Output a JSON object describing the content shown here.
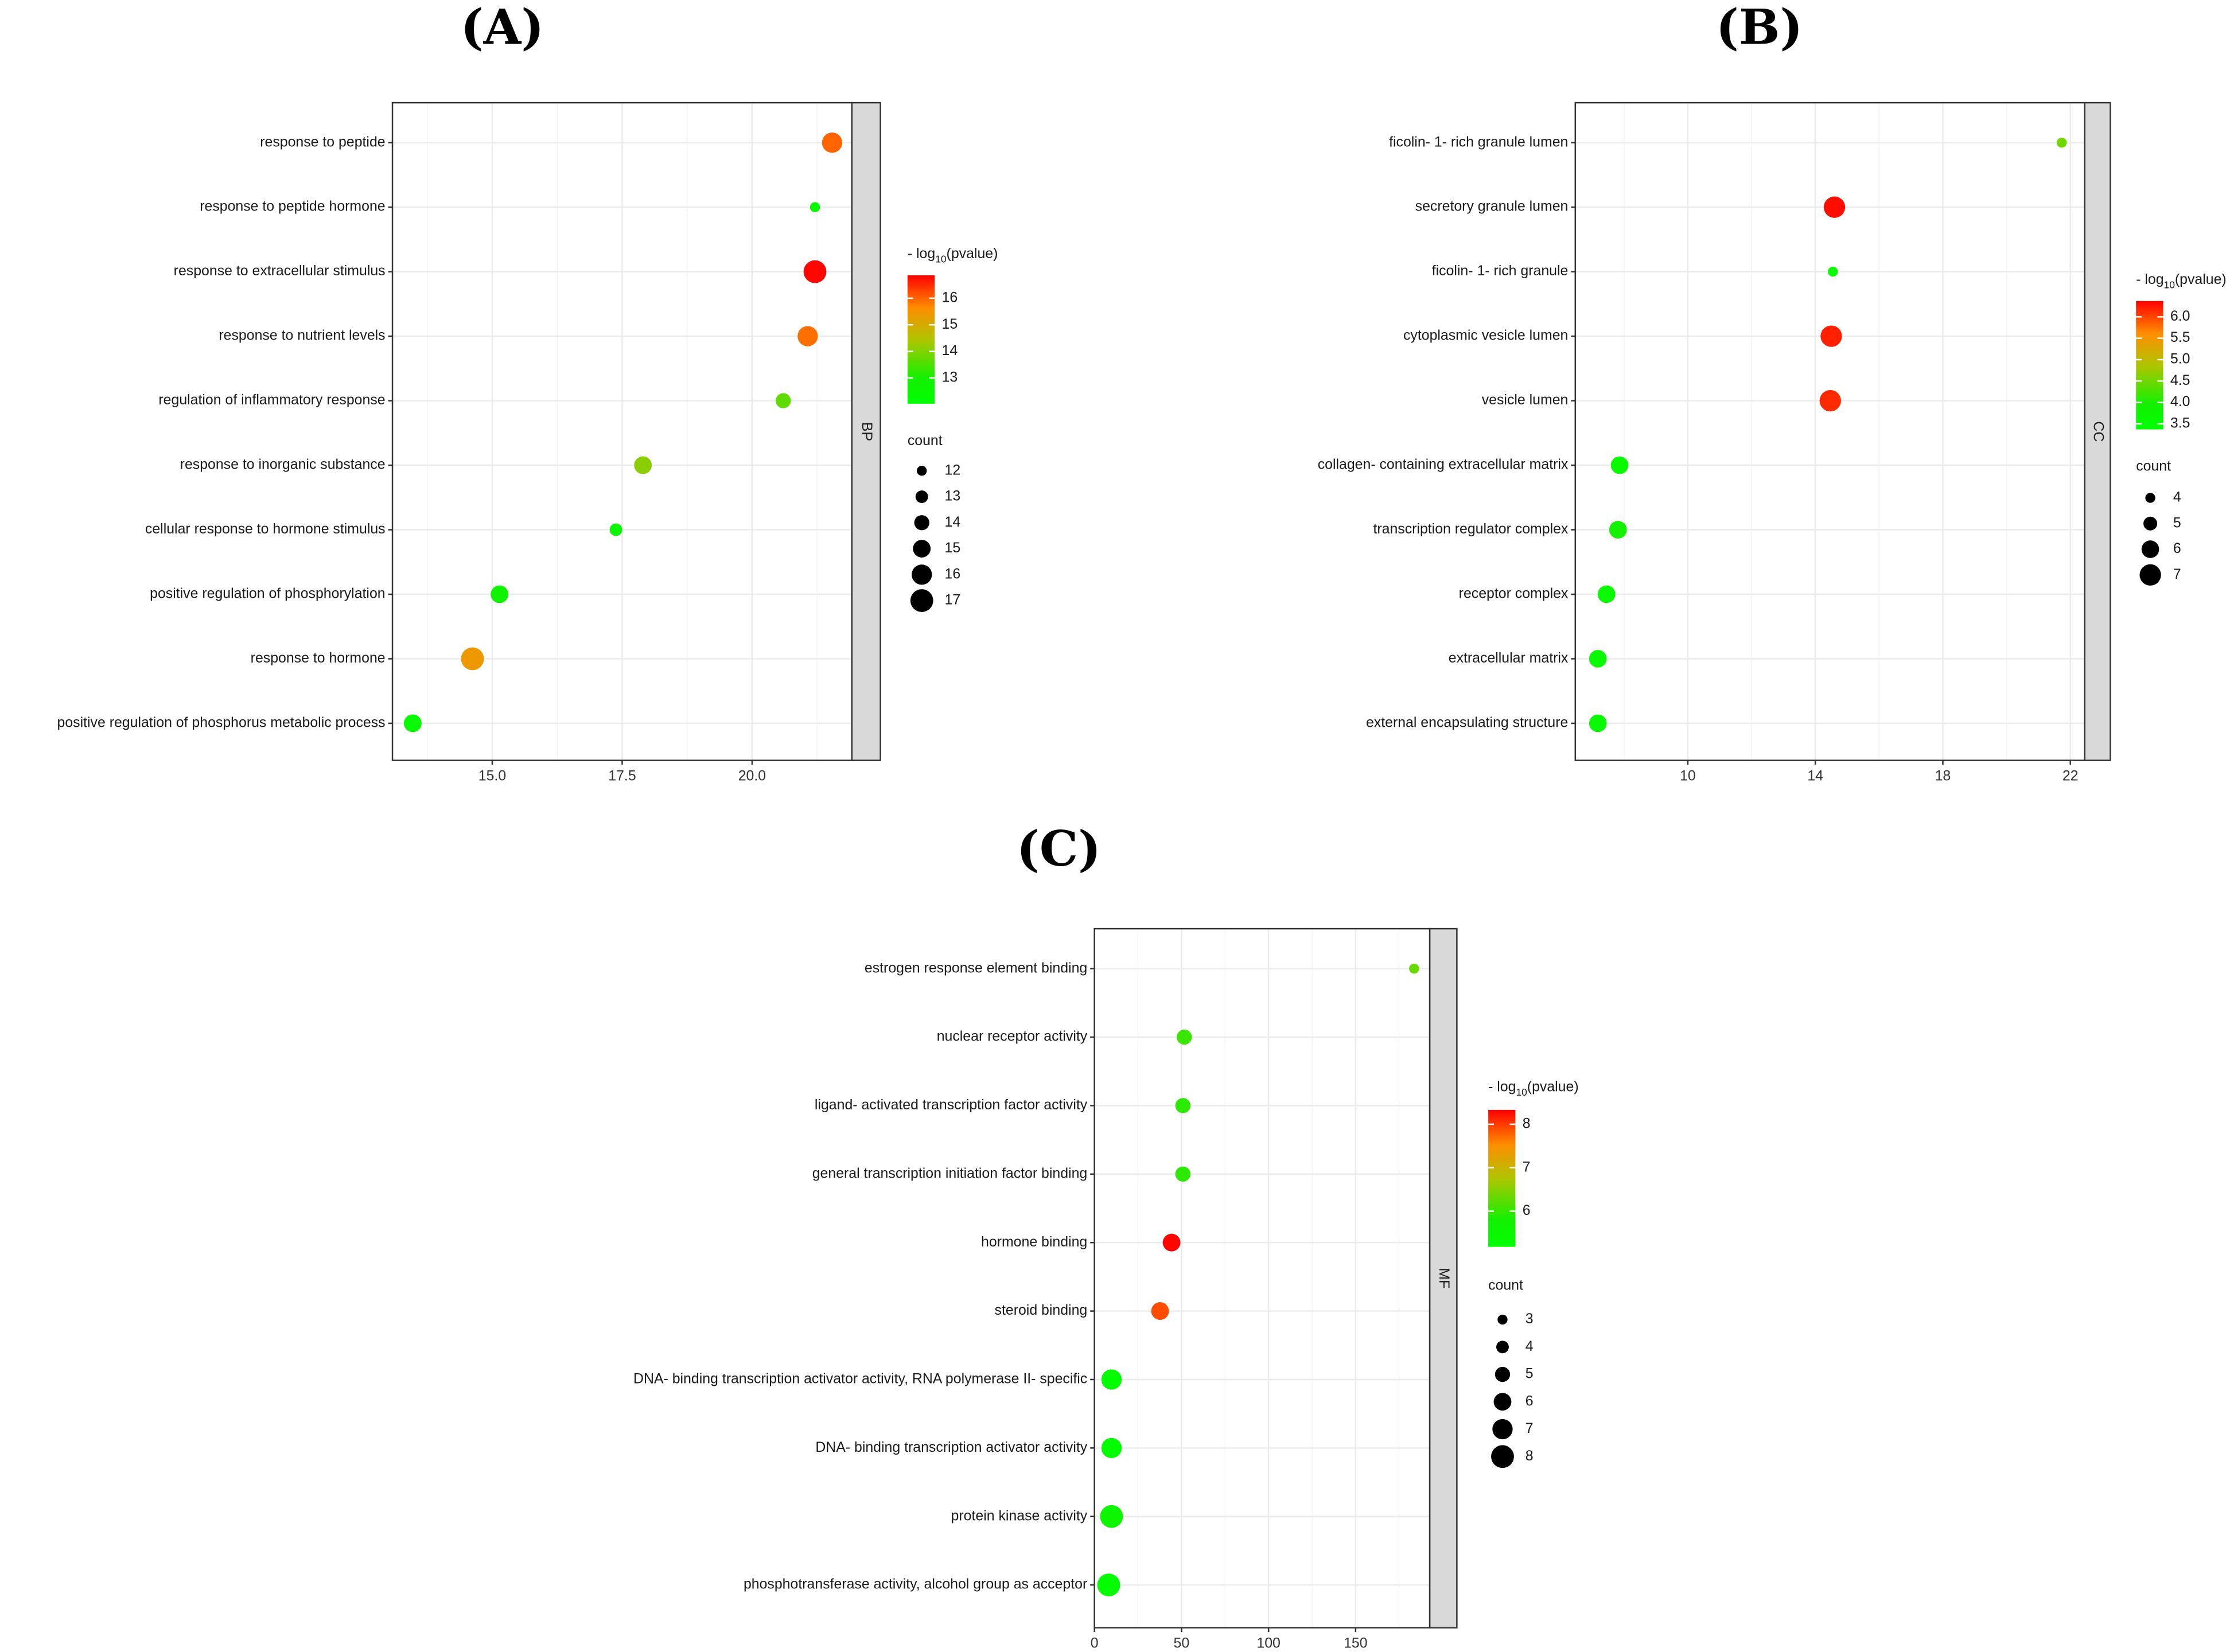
{
  "color_scale": [
    [
      "0",
      "#00ff00"
    ],
    [
      "0.2",
      "#14f000"
    ],
    [
      "0.5",
      "#b0c400"
    ],
    [
      "0.75",
      "#ff8c00"
    ],
    [
      "1",
      "#ff0000"
    ]
  ],
  "chart_data": [
    {
      "type": "scatter",
      "panel_label": "(A)",
      "facet": "BP",
      "xlim": [
        13.08,
        21.92
      ],
      "xticks": [
        "15.0",
        "17.5",
        "20.0"
      ],
      "xtick_values": [
        15,
        17.5,
        20
      ],
      "grid": true,
      "categories": [
        "response to peptide",
        "response to peptide hormone",
        "response to extracellular stimulus",
        "response to nutrient levels",
        "regulation of inflammatory response",
        "response to inorganic substance",
        "cellular response to hormone stimulus",
        "positive regulation of phosphorylation",
        "response to hormone",
        "positive regulation of phosphorus metabolic process"
      ],
      "x": [
        21.54,
        21.21,
        21.21,
        21.07,
        20.6,
        17.9,
        17.38,
        15.14,
        14.62,
        13.47
      ],
      "neg_log10_pvalue": [
        16.0,
        12.4,
        16.8,
        15.9,
        13.7,
        14.1,
        12.6,
        12.8,
        15.4,
        12.4
      ],
      "count": [
        16,
        12,
        17,
        16,
        14,
        15,
        13,
        15,
        17,
        15
      ],
      "color_legend": {
        "prefix": "- log",
        "sub": "10",
        "suffix": "(pvalue)",
        "range": [
          12.03,
          16.86
        ],
        "ticks": [
          "13",
          "14",
          "15",
          "16"
        ],
        "tick_values": [
          13,
          14,
          15,
          16
        ]
      },
      "size_legend": {
        "title": "count",
        "labels": [
          "12",
          "13",
          "14",
          "15",
          "16",
          "17"
        ],
        "values": [
          12,
          13,
          14,
          15,
          16,
          17
        ]
      },
      "legend_position": "right"
    },
    {
      "type": "scatter",
      "panel_label": "(B)",
      "facet": "CC",
      "xlim": [
        6.47,
        22.45
      ],
      "xticks": [
        "10",
        "14",
        "18",
        "22"
      ],
      "xtick_values": [
        10,
        14,
        18,
        22
      ],
      "grid": true,
      "categories": [
        "ficolin- 1- rich granule lumen",
        "secretory granule lumen",
        "ficolin- 1- rich granule",
        "cytoplasmic vesicle lumen",
        "vesicle lumen",
        "collagen- containing extracellular matrix",
        "transcription regulator complex",
        "receptor complex",
        "extracellular matrix",
        "external encapsulating structure"
      ],
      "x": [
        21.73,
        14.6,
        14.55,
        14.5,
        14.47,
        7.86,
        7.81,
        7.45,
        7.18,
        7.18
      ],
      "neg_log10_pvalue": [
        4.5,
        6.3,
        3.6,
        6.2,
        6.15,
        3.6,
        3.95,
        3.6,
        3.6,
        3.6
      ],
      "count": [
        4,
        7,
        4,
        7,
        7,
        6,
        6,
        6,
        6,
        6
      ],
      "color_legend": {
        "prefix": "- log",
        "sub": "10",
        "suffix": "(pvalue)",
        "range": [
          3.37,
          6.37
        ],
        "ticks": [
          "3.5",
          "4.0",
          "4.5",
          "5.0",
          "5.5",
          "6.0"
        ],
        "tick_values": [
          3.5,
          4.0,
          4.5,
          5.0,
          5.5,
          6.0
        ]
      },
      "size_legend": {
        "title": "count",
        "labels": [
          "4",
          "5",
          "6",
          "7"
        ],
        "values": [
          4,
          5,
          6,
          7
        ]
      },
      "legend_position": "right"
    },
    {
      "type": "scatter",
      "panel_label": "(C)",
      "facet": "MF",
      "xlim": [
        0,
        192.6
      ],
      "xticks": [
        "0",
        "50",
        "100",
        "150"
      ],
      "xtick_values": [
        0,
        50,
        100,
        150
      ],
      "grid": true,
      "categories": [
        "estrogen response element binding",
        "nuclear receptor activity",
        "ligand- activated transcription factor activity",
        "general transcription initiation factor binding",
        "hormone binding",
        "steroid binding",
        "DNA- binding transcription activator activity, RNA polymerase II- specific",
        "DNA- binding transcription activator activity",
        "protein kinase activity",
        "phosphotransferase activity, alcohol group as acceptor"
      ],
      "x": [
        183.6,
        51.6,
        50.8,
        50.8,
        44.3,
        37.7,
        9.8,
        9.8,
        9.8,
        8.2
      ],
      "neg_log10_pvalue": [
        6.3,
        6.05,
        5.95,
        5.95,
        8.3,
        7.9,
        5.25,
        5.25,
        5.55,
        5.25
      ],
      "count": [
        3,
        5,
        5,
        5,
        6,
        6,
        7,
        7,
        8,
        8
      ],
      "color_legend": {
        "prefix": "- log",
        "sub": "10",
        "suffix": "(pvalue)",
        "range": [
          5.18,
          8.33
        ],
        "ticks": [
          "6",
          "7",
          "8"
        ],
        "tick_values": [
          6,
          7,
          8
        ]
      },
      "size_legend": {
        "title": "count",
        "labels": [
          "3",
          "4",
          "5",
          "6",
          "7",
          "8"
        ],
        "values": [
          3,
          4,
          5,
          6,
          7,
          8
        ]
      },
      "legend_position": "right"
    }
  ]
}
